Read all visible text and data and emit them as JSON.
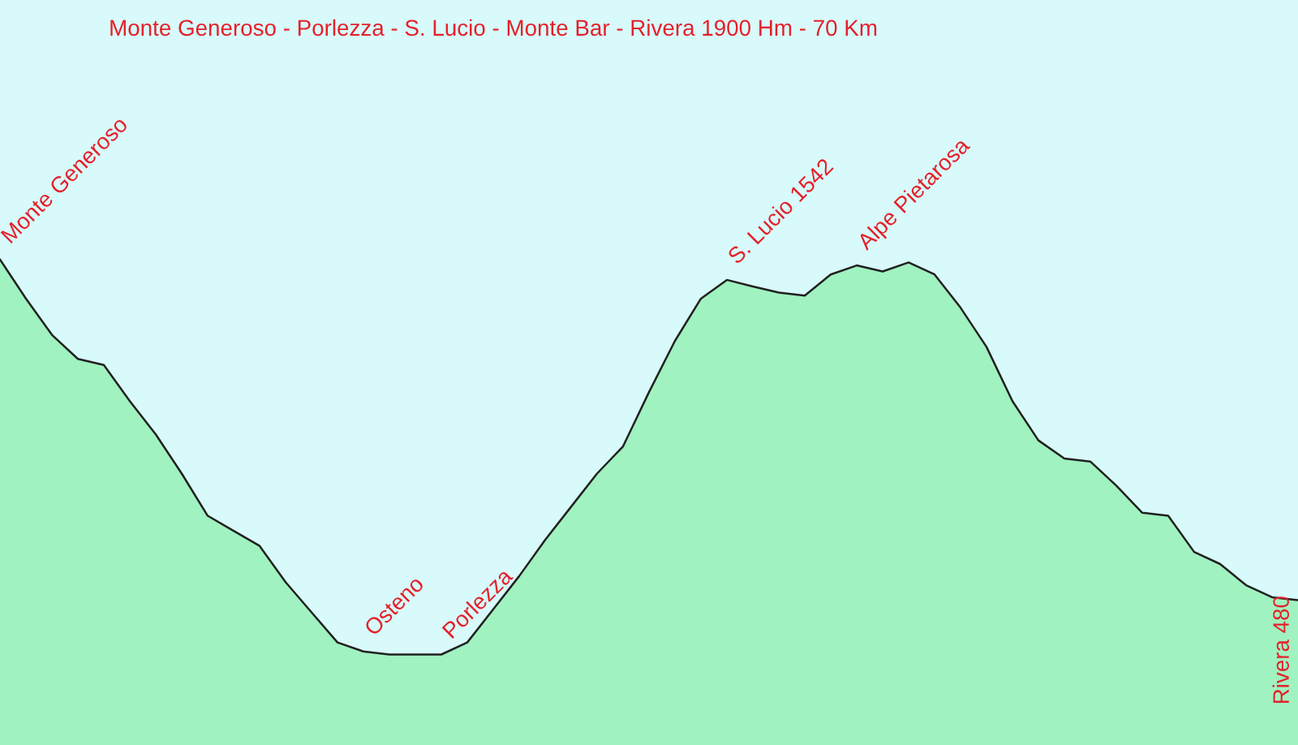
{
  "chart_data": {
    "type": "area",
    "title": "Monte Generoso - Porlezza - S. Lucio - Monte Bar - Rivera 1900 Hm - 70 Km",
    "ylim": [
      0,
      2470
    ],
    "categories": [
      null,
      null,
      null,
      null,
      null,
      null,
      null,
      null,
      null,
      null,
      null,
      null,
      null,
      null,
      null,
      null,
      null,
      null,
      null,
      null,
      null,
      null,
      null,
      null,
      null,
      null,
      null,
      null,
      null,
      null,
      null,
      null,
      null,
      null,
      null,
      null,
      null,
      null,
      null,
      null,
      null,
      null,
      null,
      null,
      null,
      null,
      null,
      null,
      null,
      null,
      null
    ],
    "series": [
      {
        "color": "#a0f2c0",
        "values": [
          1610,
          1480,
          1360,
          1280,
          1260,
          1140,
          1030,
          900,
          760,
          710,
          660,
          540,
          440,
          340,
          310,
          300,
          300,
          300,
          340,
          450,
          560,
          680,
          790,
          900,
          990,
          1170,
          1340,
          1480,
          1542,
          1520,
          1500,
          1490,
          1560,
          1590,
          1570,
          1600,
          1560,
          1450,
          1320,
          1140,
          1010,
          950,
          940,
          860,
          770,
          760,
          640,
          600,
          530,
          490,
          480
        ],
        "value_labels": [
          "Monte Generoso",
          null,
          null,
          null,
          null,
          null,
          null,
          null,
          null,
          null,
          null,
          null,
          null,
          null,
          "Osteno",
          null,
          null,
          "Porlezza",
          null,
          null,
          null,
          null,
          null,
          null,
          null,
          null,
          null,
          null,
          "S. Lucio 1542",
          null,
          null,
          null,
          null,
          "Alpe Pietarosa",
          null,
          null,
          null,
          null,
          null,
          null,
          null,
          null,
          null,
          null,
          null,
          null,
          null,
          null,
          null,
          null,
          "Rivera 480"
        ]
      }
    ]
  }
}
